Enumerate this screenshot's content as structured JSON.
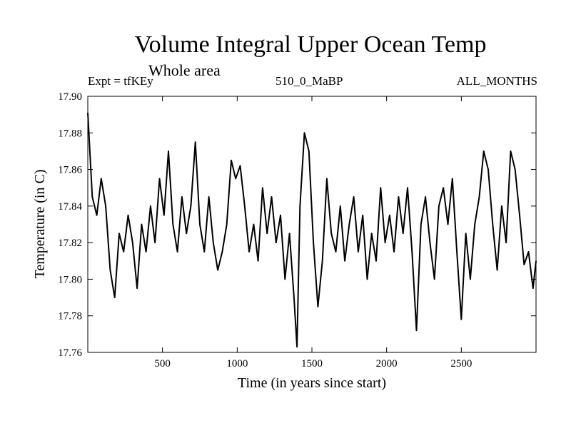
{
  "chart_data": {
    "type": "line",
    "title": "Volume Integral Upper Ocean Temp",
    "subtitle": "Whole area",
    "header_left": "Expt = tfKEy",
    "header_center": "510_0_MaBP",
    "header_right": "ALL_MONTHS",
    "xlabel": "Time (in years since start)",
    "ylabel": "Temperature (in C)",
    "xlim": [
      0,
      3000
    ],
    "ylim": [
      17.76,
      17.9
    ],
    "xticks": [
      500,
      1000,
      1500,
      2000,
      2500
    ],
    "yticks": [
      "17.76",
      "17.78",
      "17.80",
      "17.82",
      "17.84",
      "17.86",
      "17.88",
      "17.90"
    ],
    "grid": false,
    "series": [
      {
        "x": [
          0,
          30,
          60,
          90,
          120,
          150,
          180,
          210,
          240,
          270,
          300,
          330,
          360,
          390,
          420,
          450,
          480,
          510,
          540,
          570,
          600,
          630,
          660,
          690,
          720,
          750,
          780,
          810,
          840,
          870,
          900,
          930,
          960,
          990,
          1020,
          1050,
          1080,
          1110,
          1140,
          1170,
          1200,
          1230,
          1260,
          1290,
          1320,
          1350,
          1380,
          1400,
          1420,
          1450,
          1480,
          1510,
          1540,
          1570,
          1600,
          1630,
          1660,
          1690,
          1720,
          1750,
          1780,
          1810,
          1840,
          1870,
          1900,
          1930,
          1960,
          1990,
          2020,
          2050,
          2080,
          2110,
          2140,
          2170,
          2200,
          2230,
          2260,
          2290,
          2320,
          2350,
          2380,
          2410,
          2440,
          2470,
          2500,
          2530,
          2560,
          2590,
          2620,
          2650,
          2680,
          2710,
          2740,
          2770,
          2800,
          2830,
          2860,
          2890,
          2920,
          2950,
          2980,
          3000
        ],
        "y": [
          17.891,
          17.845,
          17.835,
          17.855,
          17.84,
          17.805,
          17.79,
          17.825,
          17.815,
          17.835,
          17.82,
          17.795,
          17.83,
          17.815,
          17.84,
          17.82,
          17.855,
          17.835,
          17.87,
          17.83,
          17.815,
          17.845,
          17.825,
          17.84,
          17.875,
          17.83,
          17.815,
          17.845,
          17.82,
          17.805,
          17.815,
          17.83,
          17.865,
          17.855,
          17.862,
          17.84,
          17.815,
          17.83,
          17.81,
          17.85,
          17.825,
          17.845,
          17.82,
          17.835,
          17.8,
          17.825,
          17.79,
          17.763,
          17.84,
          17.88,
          17.87,
          17.82,
          17.785,
          17.81,
          17.855,
          17.825,
          17.815,
          17.84,
          17.81,
          17.83,
          17.845,
          17.815,
          17.835,
          17.8,
          17.825,
          17.81,
          17.85,
          17.82,
          17.835,
          17.815,
          17.845,
          17.825,
          17.85,
          17.815,
          17.772,
          17.83,
          17.845,
          17.82,
          17.8,
          17.84,
          17.85,
          17.83,
          17.855,
          17.815,
          17.778,
          17.825,
          17.8,
          17.83,
          17.845,
          17.87,
          17.86,
          17.83,
          17.805,
          17.84,
          17.82,
          17.87,
          17.86,
          17.835,
          17.808,
          17.815,
          17.795,
          17.81
        ]
      }
    ]
  }
}
